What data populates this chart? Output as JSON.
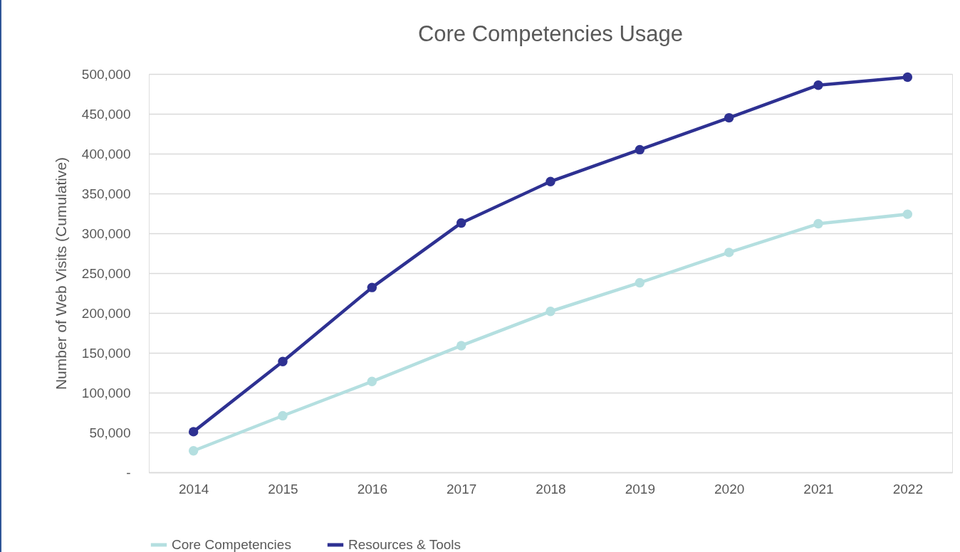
{
  "chart_data": {
    "type": "line",
    "title": "Core Competencies Usage",
    "ylabel": "Number of Web Visits (Cumulative)",
    "categories": [
      "2014",
      "2015",
      "2016",
      "2017",
      "2018",
      "2019",
      "2020",
      "2021",
      "2022"
    ],
    "series": [
      {
        "name": "Core Competencies",
        "color": "#b4dfe0",
        "values": [
          27000,
          71000,
          114000,
          159000,
          202000,
          238000,
          276000,
          312000,
          324000
        ]
      },
      {
        "name": "Resources & Tools",
        "color": "#2e3192",
        "values": [
          51000,
          139000,
          232000,
          313000,
          365000,
          405000,
          445000,
          486000,
          496000
        ]
      }
    ],
    "ylim": [
      0,
      500000
    ],
    "yticks": [
      {
        "value": 0,
        "label": "-"
      },
      {
        "value": 50000,
        "label": "50,000"
      },
      {
        "value": 100000,
        "label": "100,000"
      },
      {
        "value": 150000,
        "label": "150,000"
      },
      {
        "value": 200000,
        "label": "200,000"
      },
      {
        "value": 250000,
        "label": "250,000"
      },
      {
        "value": 300000,
        "label": "300,000"
      },
      {
        "value": 350000,
        "label": "350,000"
      },
      {
        "value": 400000,
        "label": "400,000"
      },
      {
        "value": 450000,
        "label": "450,000"
      },
      {
        "value": 500000,
        "label": "500,000"
      }
    ],
    "grid": "y",
    "legend": "bottom",
    "marker": "circle",
    "line_style": "solid"
  }
}
